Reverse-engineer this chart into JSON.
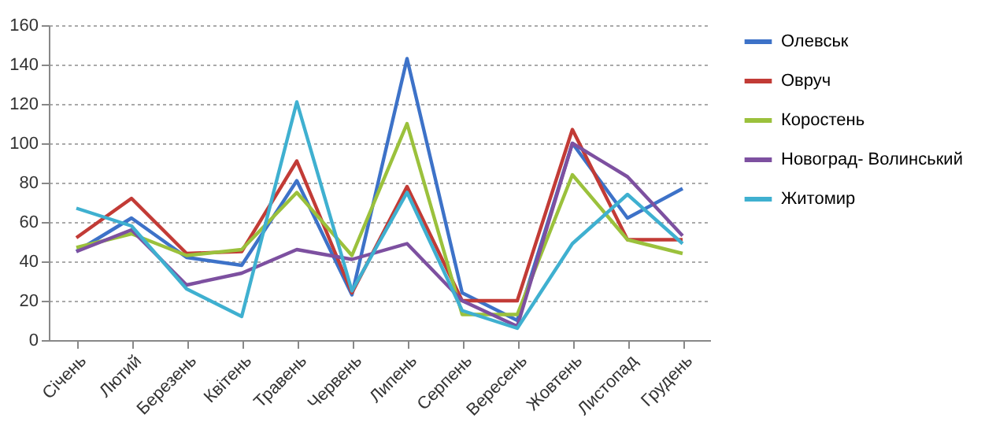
{
  "chart_data": {
    "type": "line",
    "categories": [
      "Січень",
      "Лютий",
      "Березень",
      "Квітень",
      "Травень",
      "Червень",
      "Липень",
      "Серпень",
      "Вересень",
      "Жовтень",
      "Листопад",
      "Грудень"
    ],
    "series": [
      {
        "name": "Олевськ",
        "color": "#3d72c8",
        "values": [
          45,
          62,
          42,
          38,
          81,
          23,
          143,
          24,
          10,
          100,
          62,
          77
        ]
      },
      {
        "name": "Овруч",
        "color": "#c23b36",
        "values": [
          52,
          72,
          44,
          45,
          91,
          24,
          78,
          20,
          20,
          107,
          51,
          51
        ]
      },
      {
        "name": "Коростень",
        "color": "#9bc13c",
        "values": [
          47,
          54,
          43,
          46,
          75,
          43,
          110,
          13,
          13,
          84,
          51,
          44
        ]
      },
      {
        "name": "Новоград- Волинський",
        "color": "#7d50a0",
        "values": [
          45,
          56,
          28,
          34,
          46,
          41,
          49,
          20,
          7,
          100,
          83,
          53
        ]
      },
      {
        "name": "Житомир",
        "color": "#3fb0d0",
        "values": [
          67,
          58,
          26,
          12,
          121,
          25,
          75,
          15,
          6,
          49,
          74,
          49
        ]
      }
    ],
    "ylim": [
      0,
      160
    ],
    "yticks": [
      0,
      20,
      40,
      60,
      80,
      100,
      120,
      140,
      160
    ],
    "grid": "y",
    "legend": "right",
    "marker": "none",
    "line_style": "solid"
  }
}
